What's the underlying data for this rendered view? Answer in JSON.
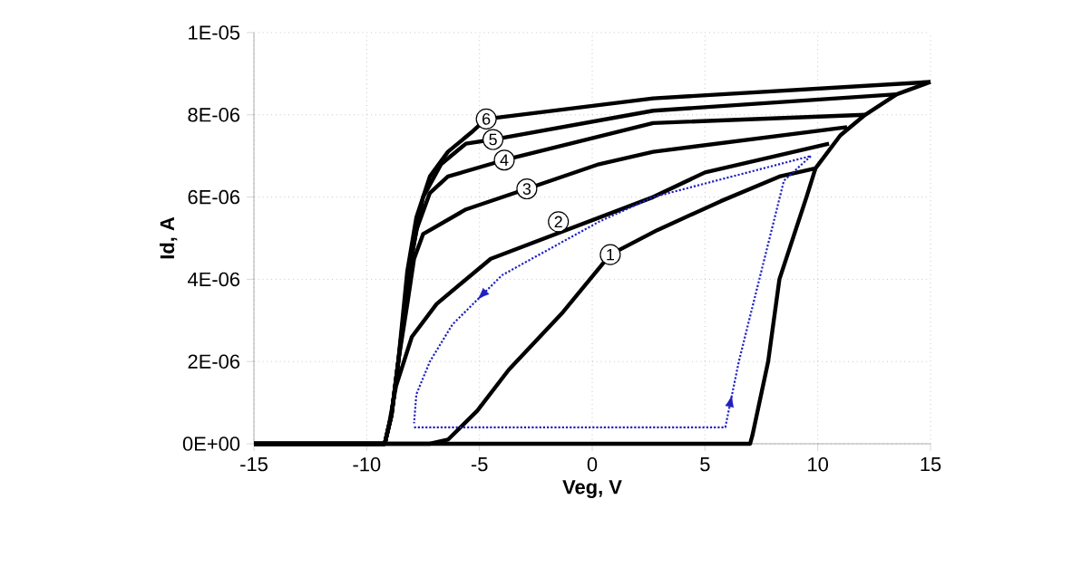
{
  "chart_data": {
    "type": "line",
    "xlabel": "Veg, V",
    "ylabel": "Id, A",
    "xlim": [
      -15,
      15
    ],
    "xticks": [
      -15,
      -10,
      -5,
      0,
      5,
      10,
      15
    ],
    "ylim": [
      0,
      1e-05
    ],
    "yticks": [
      {
        "value": 0,
        "label": "0E+00"
      },
      {
        "value": 2e-06,
        "label": "2E-06"
      },
      {
        "value": 4e-06,
        "label": "4E-06"
      },
      {
        "value": 6e-06,
        "label": "6E-06"
      },
      {
        "value": 8e-06,
        "label": "8E-06"
      },
      {
        "value": 1e-05,
        "label": "1E-05"
      }
    ],
    "grid": true,
    "marker": "none",
    "line_style": "solid",
    "series": [
      {
        "color": "#000000",
        "x": [
          -15,
          7.0,
          7.1,
          7.8,
          8.3,
          9.5,
          9.9,
          11.0,
          12.1,
          13.5,
          15
        ],
        "values": [
          0,
          0,
          2e-07,
          2e-06,
          4e-06,
          6e-06,
          6.7e-06,
          7.5e-06,
          8e-06,
          8.5e-06,
          8.8e-06
        ]
      },
      {
        "color": "#000000",
        "x": [
          9.9,
          8.3,
          5.7,
          2.9,
          0.8,
          -1.3,
          -3.7,
          -5.1,
          -6.4,
          -7.2,
          -15
        ],
        "values": [
          6.7e-06,
          6.5e-06,
          5.9e-06,
          5.2e-06,
          4.6e-06,
          3.2e-06,
          1.8e-06,
          8e-07,
          1e-07,
          0,
          0
        ]
      },
      {
        "color": "#000000",
        "x": [
          10.5,
          5.0,
          2.7,
          -4.5,
          -6.9,
          -8.0,
          -8.7,
          -9.0,
          -9.2,
          -15
        ],
        "values": [
          7.3e-06,
          6.6e-06,
          6e-06,
          4.5e-06,
          3.4e-06,
          2.6e-06,
          1.4e-06,
          5e-07,
          0,
          0
        ]
      },
      {
        "color": "#000000",
        "x": [
          11.3,
          2.7,
          0.3,
          -2.9,
          -5.6,
          -7.5,
          -7.9,
          -8.2,
          -8.6,
          -8.9,
          -9.2,
          -15
        ],
        "values": [
          7.7e-06,
          7.1e-06,
          6.8e-06,
          6.2e-06,
          5.7e-06,
          5.1e-06,
          4.5e-06,
          3.4e-06,
          2e-06,
          7e-07,
          0,
          0
        ]
      },
      {
        "color": "#000000",
        "x": [
          12.1,
          2.7,
          -3.9,
          -6.4,
          -7.2,
          -7.8,
          -8.2,
          -8.6,
          -8.9,
          -9.2,
          -15
        ],
        "values": [
          8e-06,
          7.8e-06,
          6.9e-06,
          6.5e-06,
          6.1e-06,
          5.2e-06,
          3.9e-06,
          2e-06,
          7e-07,
          0,
          0
        ]
      },
      {
        "color": "#000000",
        "x": [
          13.5,
          2.7,
          -4.4,
          -5.6,
          -6.7,
          -7.5,
          -8.0,
          -8.6,
          -8.9,
          -9.2,
          -15
        ],
        "values": [
          8.5e-06,
          8.1e-06,
          7.4e-06,
          7.3e-06,
          6.8e-06,
          6e-06,
          4.6e-06,
          2e-06,
          7e-07,
          0,
          0
        ]
      },
      {
        "color": "#000000",
        "x": [
          15,
          2.7,
          -4.7,
          -5.3,
          -6.4,
          -7.2,
          -7.8,
          -8.2,
          -8.6,
          -8.9,
          -9.2,
          -15
        ],
        "values": [
          8.8e-06,
          8.4e-06,
          7.9e-06,
          7.6e-06,
          7.1e-06,
          6.5e-06,
          5.5e-06,
          4.2e-06,
          2e-06,
          7e-07,
          0,
          0
        ]
      },
      {
        "color": "#2020c0",
        "line_style": "dotted",
        "x": [
          -7.9,
          5.9,
          6.5,
          8.5,
          9.7,
          2.7,
          0.3,
          -4.0,
          -6.2,
          -7.2,
          -7.8,
          -7.9
        ],
        "values": [
          4e-07,
          4e-07,
          2e-06,
          6.4e-06,
          7e-06,
          6e-06,
          5.4e-06,
          4.1e-06,
          2.9e-06,
          2e-06,
          1.2e-06,
          5e-07
        ]
      }
    ],
    "annotations": [
      {
        "text": "1",
        "x": 0.8,
        "y": 4.6e-06
      },
      {
        "text": "2",
        "x": -1.5,
        "y": 5.4e-06
      },
      {
        "text": "3",
        "x": -2.9,
        "y": 6.2e-06
      },
      {
        "text": "4",
        "x": -3.9,
        "y": 6.9e-06
      },
      {
        "text": "5",
        "x": -4.4,
        "y": 7.4e-06
      },
      {
        "text": "6",
        "x": -4.7,
        "y": 7.9e-06
      }
    ]
  }
}
